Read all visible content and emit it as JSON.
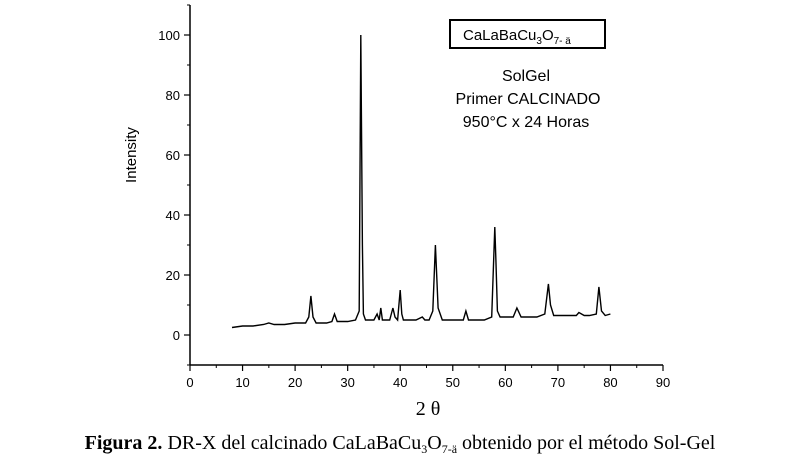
{
  "chart_data": {
    "type": "line",
    "xlabel": "2 θ",
    "ylabel": "Intensity",
    "xlim": [
      0,
      90
    ],
    "ylim": [
      -10,
      110
    ],
    "xticks": [
      0,
      10,
      20,
      30,
      40,
      50,
      60,
      70,
      80,
      90
    ],
    "yticks": [
      0,
      20,
      40,
      60,
      80,
      100
    ],
    "grid": false,
    "legend": {
      "placement": "top-right",
      "formula": {
        "base": "CaLaBaCu",
        "sub1": "3",
        "mid": "O",
        "sub2": "7- ä"
      }
    },
    "annotation": [
      "SolGel",
      "Primer CALCINADO",
      "950°C x 24 Horas"
    ],
    "series": [
      {
        "x": [
          8,
          10,
          12,
          14,
          15,
          16,
          18,
          20,
          22,
          22.6,
          23.0,
          23.4,
          24,
          26,
          27,
          27.5,
          28,
          30,
          31.5,
          32.2,
          32.5,
          32.8,
          33.0,
          33.4,
          34,
          35,
          35.6,
          36,
          36.3,
          36.6,
          37,
          38,
          38.6,
          39,
          39.5,
          40.0,
          40.3,
          40.6,
          41.5,
          43,
          44.2,
          44.7,
          45.5,
          46.2,
          46.7,
          47.2,
          48,
          50,
          51,
          52,
          52.5,
          53,
          54,
          56,
          57.4,
          58.0,
          58.2,
          58.5,
          59,
          60,
          61.5,
          62.2,
          63,
          64,
          66,
          67.5,
          68.2,
          68.6,
          69.2,
          70,
          72,
          73.5,
          74,
          75,
          76,
          77.3,
          77.8,
          78.3,
          79,
          80
        ],
        "values": [
          2.5,
          3,
          3,
          3.5,
          4,
          3.5,
          3.5,
          4,
          4,
          6,
          13,
          6,
          4,
          4,
          4.5,
          7,
          4.5,
          4.5,
          5,
          8,
          100,
          30,
          7,
          5,
          5,
          5,
          7,
          5,
          9,
          5,
          5,
          5,
          9,
          6,
          5,
          15,
          7,
          5,
          5,
          5,
          6,
          5,
          5,
          8,
          30,
          9,
          5,
          5,
          5,
          5,
          8,
          5,
          5,
          5,
          6,
          36,
          25,
          8,
          6,
          6,
          6,
          9,
          6,
          6,
          6,
          7,
          17,
          10,
          6.5,
          6.5,
          6.5,
          6.5,
          7.5,
          6.5,
          6.5,
          7,
          16,
          8,
          6.5,
          7
        ]
      }
    ]
  },
  "caption": {
    "label": "Figura 2.",
    "text_before": " DR-X del calcinado  CaLaBaCu",
    "sub1": "3",
    "mid": "O",
    "sub2": "7-ä",
    "text_after": " obtenido por el método Sol-Gel"
  }
}
